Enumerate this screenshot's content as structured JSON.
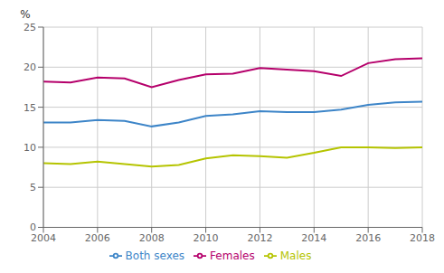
{
  "chart_data": {
    "type": "line",
    "y_label": "%",
    "x": [
      2004,
      2005,
      2006,
      2007,
      2008,
      2009,
      2010,
      2011,
      2012,
      2013,
      2014,
      2015,
      2016,
      2017,
      2018
    ],
    "series": [
      {
        "name": "Both sexes",
        "color": "#3d85c8",
        "values": [
          13.1,
          13.1,
          13.4,
          13.3,
          12.6,
          13.1,
          13.9,
          14.1,
          14.5,
          14.4,
          14.4,
          14.7,
          15.3,
          15.6,
          15.7
        ]
      },
      {
        "name": "Males",
        "color": "#b5c400",
        "values": [
          8.0,
          7.9,
          8.2,
          7.9,
          7.6,
          7.8,
          8.6,
          9.0,
          8.9,
          8.7,
          9.3,
          10.0,
          10.0,
          9.9,
          10.0
        ]
      },
      {
        "name": "Females",
        "color": "#b5006b",
        "values": [
          18.2,
          18.1,
          18.7,
          18.6,
          17.5,
          18.4,
          19.1,
          19.2,
          19.9,
          19.7,
          19.5,
          18.9,
          20.5,
          21.0,
          21.1
        ]
      }
    ],
    "xlim": [
      2004,
      2018
    ],
    "xticks": [
      2004,
      2006,
      2008,
      2010,
      2012,
      2014,
      2016,
      2018
    ],
    "ylim": [
      0,
      25
    ],
    "yticks": [
      0,
      5,
      10,
      15,
      20,
      25
    ],
    "grid": true,
    "legend": "bottom"
  }
}
